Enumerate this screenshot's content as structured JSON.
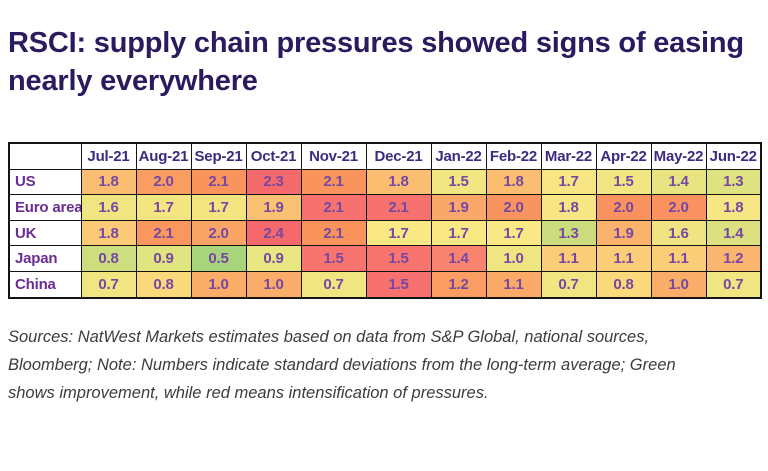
{
  "page": {
    "title_lines": [
      "RSCI: supply chain pressures showed signs of easing",
      "nearly everywhere"
    ],
    "footnote_lines": [
      "Sources: NatWest Markets estimates based on data from S&P Global, national sources,",
      "Bloomberg; Note: Numbers indicate standard deviations from the long-term average; Green",
      "shows improvement, while red means intensification of pressures."
    ]
  },
  "colors": {
    "title_text": "#2B1A5E",
    "column_header_text": "#3D2B80",
    "row_label_text": "#6B2D91",
    "value_text": "#7647A3",
    "table_border": "#141414",
    "background": "#FFFFFF",
    "scale_green": "#A8D47B",
    "scale_yellow": "#F7E683",
    "scale_red": "#F4696B"
  },
  "chart_data": {
    "type": "heatmap",
    "title": "RSCI: supply chain pressures showed signs of easing nearly everywhere",
    "value_unit": "standard deviations from the long-term average",
    "legend": {
      "green": "improvement",
      "red": "intensification of pressures"
    },
    "columns": [
      "Jul-21",
      "Aug-21",
      "Sep-21",
      "Oct-21",
      "Nov-21",
      "Dec-21",
      "Jan-22",
      "Feb-22",
      "Mar-22",
      "Apr-22",
      "May-22",
      "Jun-22"
    ],
    "rows": [
      {
        "label": "US",
        "values": [
          1.8,
          2.0,
          2.1,
          2.3,
          2.1,
          1.8,
          1.5,
          1.8,
          1.7,
          1.5,
          1.4,
          1.3
        ],
        "cell_colors": [
          "#FBBE70",
          "#F99E60",
          "#F9955C",
          "#F4696B",
          "#F9955C",
          "#FBBE70",
          "#F0E682",
          "#FBBE70",
          "#F8E583",
          "#F0E682",
          "#E8E481",
          "#DFE37F"
        ]
      },
      {
        "label": "Euro area",
        "values": [
          1.6,
          1.7,
          1.7,
          1.9,
          2.1,
          2.1,
          1.9,
          2.0,
          1.8,
          2.0,
          2.0,
          1.8
        ],
        "cell_colors": [
          "#EFE682",
          "#F3E681",
          "#F3E681",
          "#FBC173",
          "#F7716E",
          "#F7716E",
          "#FAA86A",
          "#F9935F",
          "#F8E584",
          "#F9925F",
          "#F9925F",
          "#F8E584"
        ]
      },
      {
        "label": "UK",
        "values": [
          1.8,
          2.1,
          2.0,
          2.4,
          2.1,
          1.7,
          1.7,
          1.7,
          1.3,
          1.9,
          1.6,
          1.4
        ],
        "cell_colors": [
          "#FBCA76",
          "#F9975E",
          "#FAA466",
          "#F5696C",
          "#F9935C",
          "#F9E883",
          "#F9E883",
          "#F9E883",
          "#CCDC7D",
          "#FBB26C",
          "#EFE481",
          "#DCE07E"
        ]
      },
      {
        "label": "Japan",
        "values": [
          0.8,
          0.9,
          0.5,
          0.9,
          1.5,
          1.5,
          1.4,
          1.0,
          1.1,
          1.1,
          1.1,
          1.2
        ],
        "cell_colors": [
          "#CDDE7E",
          "#E0E580",
          "#A8D47B",
          "#E9E782",
          "#F7746F",
          "#F7746F",
          "#F8836F",
          "#EFE682",
          "#FBCD77",
          "#FBCD77",
          "#FBCD77",
          "#FAB56E"
        ]
      },
      {
        "label": "China",
        "values": [
          0.7,
          0.8,
          1.0,
          1.0,
          0.7,
          1.5,
          1.2,
          1.1,
          0.7,
          0.8,
          1.0,
          0.7
        ],
        "cell_colors": [
          "#F0E681",
          "#FAD97B",
          "#FAAD69",
          "#FAAD69",
          "#F0E681",
          "#F7716E",
          "#F99D62",
          "#FAA967",
          "#F0E681",
          "#FAD97B",
          "#FAAD69",
          "#F0E681"
        ]
      }
    ]
  }
}
